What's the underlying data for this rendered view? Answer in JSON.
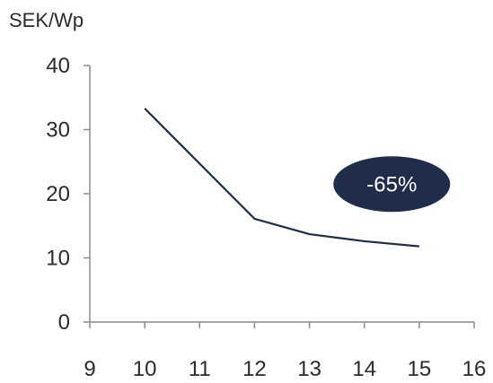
{
  "chart_data": {
    "type": "line",
    "title": "",
    "ylabel": "SEK/Wp",
    "xlabel": "",
    "xlim": [
      9,
      16
    ],
    "ylim": [
      0,
      40
    ],
    "x_ticks": [
      9,
      10,
      11,
      12,
      13,
      14,
      15,
      16
    ],
    "y_ticks": [
      0,
      10,
      20,
      30,
      40
    ],
    "grid": false,
    "series": [
      {
        "x": [
          10,
          12,
          13,
          14,
          15
        ],
        "values": [
          33.3,
          16.1,
          13.7,
          12.6,
          11.8
        ],
        "color": "#1f2d4a"
      }
    ],
    "annotations": [
      {
        "text": "-65%",
        "x": 14.5,
        "y": 21.5,
        "fill": "#1f2d4a",
        "text_color": "#ffffff"
      }
    ]
  }
}
